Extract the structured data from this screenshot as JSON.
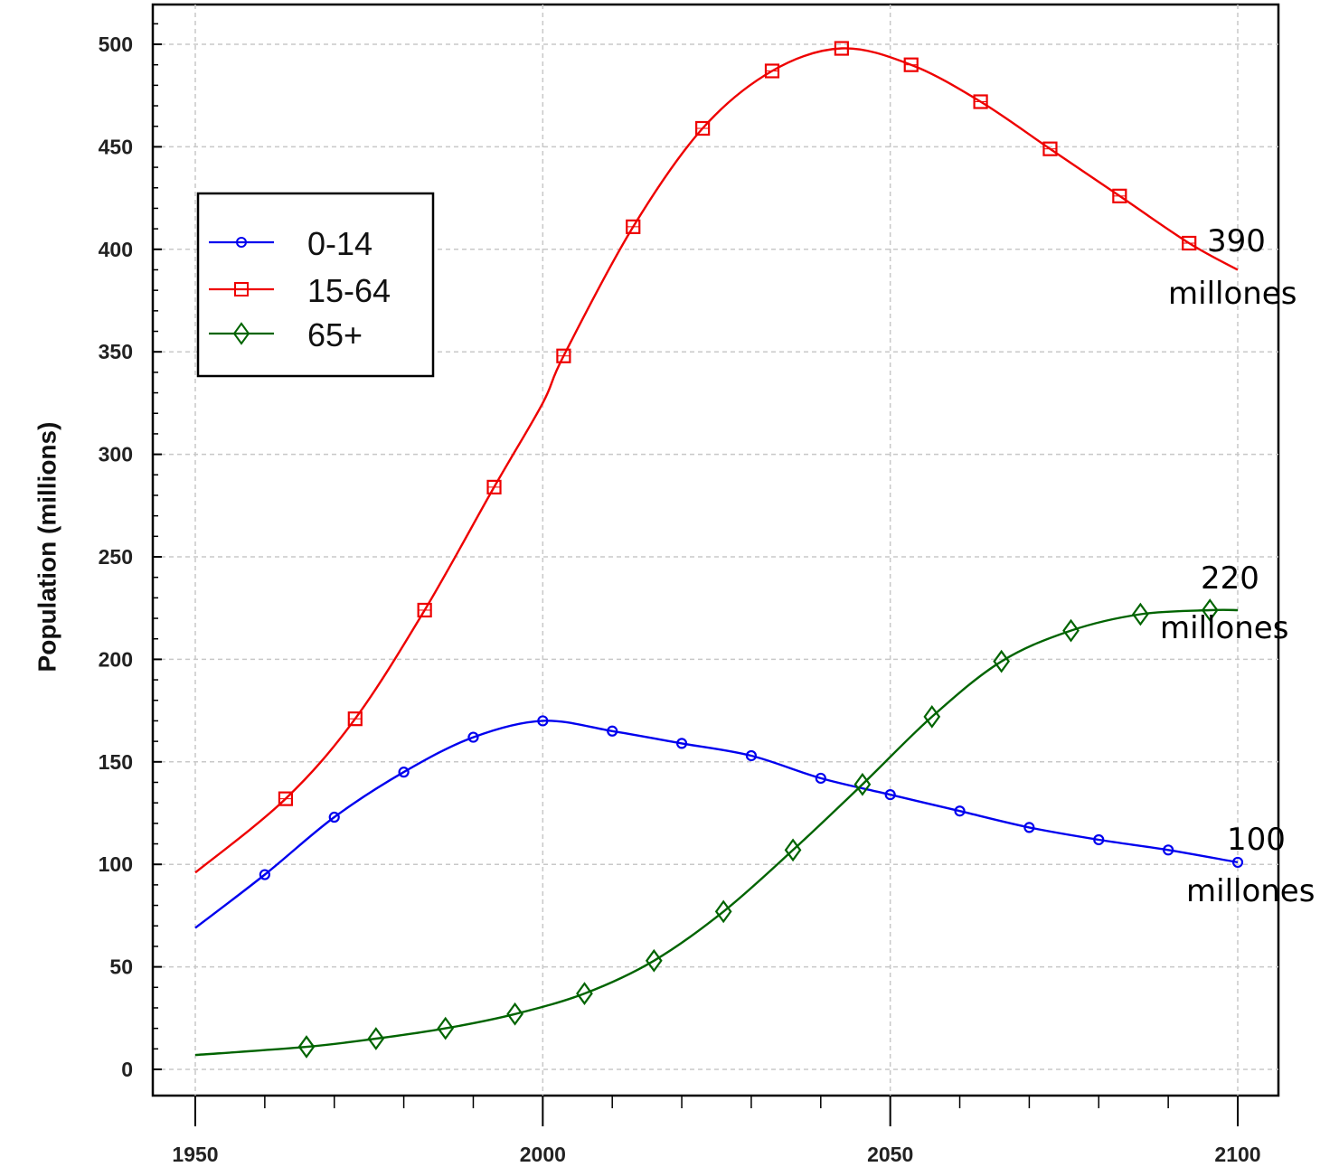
{
  "chart_data": {
    "type": "line",
    "title": "",
    "xlabel": "",
    "ylabel": "Population (millions)",
    "xlim": [
      1950,
      2100
    ],
    "ylim": [
      0,
      500
    ],
    "xticks": [
      "1950",
      "2000",
      "2050",
      "2100"
    ],
    "yticks": [
      "0",
      "50",
      "100",
      "150",
      "200",
      "250",
      "300",
      "350",
      "400",
      "450",
      "500"
    ],
    "grid": true,
    "legend_position": "upper-left",
    "series": [
      {
        "name": "0-14",
        "color": "#0000ee",
        "marker": "circle",
        "x": [
          1950,
          1960,
          1970,
          1980,
          1990,
          2000,
          2010,
          2020,
          2030,
          2040,
          2050,
          2060,
          2070,
          2080,
          2090,
          2100
        ],
        "y": [
          69,
          95,
          123,
          145,
          162,
          170,
          165,
          159,
          153,
          142,
          134,
          126,
          118,
          112,
          107,
          101
        ],
        "marker_x": [
          1960,
          1970,
          1980,
          1990,
          2000,
          2010,
          2020,
          2030,
          2040,
          2050,
          2060,
          2070,
          2080,
          2090,
          2100
        ]
      },
      {
        "name": "15-64",
        "color": "#ee0000",
        "marker": "square",
        "x": [
          1950,
          1963,
          1973,
          1983,
          1993,
          2000,
          2003,
          2013,
          2023,
          2033,
          2043,
          2053,
          2063,
          2073,
          2083,
          2093,
          2100
        ],
        "y": [
          96,
          132,
          171,
          224,
          284,
          325,
          348,
          411,
          459,
          487,
          498,
          490,
          472,
          449,
          426,
          403,
          390
        ],
        "marker_x": [
          1963,
          1973,
          1983,
          1993,
          2003,
          2013,
          2023,
          2033,
          2043,
          2053,
          2063,
          2073,
          2083,
          2093
        ]
      },
      {
        "name": "65+",
        "color": "#006400",
        "marker": "diamond",
        "x": [
          1950,
          1966,
          1976,
          1986,
          1996,
          2006,
          2016,
          2026,
          2036,
          2046,
          2056,
          2066,
          2076,
          2086,
          2096,
          2100
        ],
        "y": [
          7,
          11,
          15,
          20,
          27,
          37,
          53,
          77,
          107,
          139,
          172,
          199,
          214,
          222,
          224,
          224
        ],
        "marker_x": [
          1966,
          1976,
          1986,
          1996,
          2006,
          2016,
          2026,
          2036,
          2046,
          2056,
          2066,
          2076,
          2086,
          2096
        ]
      }
    ],
    "annotations": [
      {
        "line1": "390",
        "line2": "millones"
      },
      {
        "line1": "220",
        "line2": "millones"
      },
      {
        "line1": "100",
        "line2": "millones"
      }
    ]
  }
}
